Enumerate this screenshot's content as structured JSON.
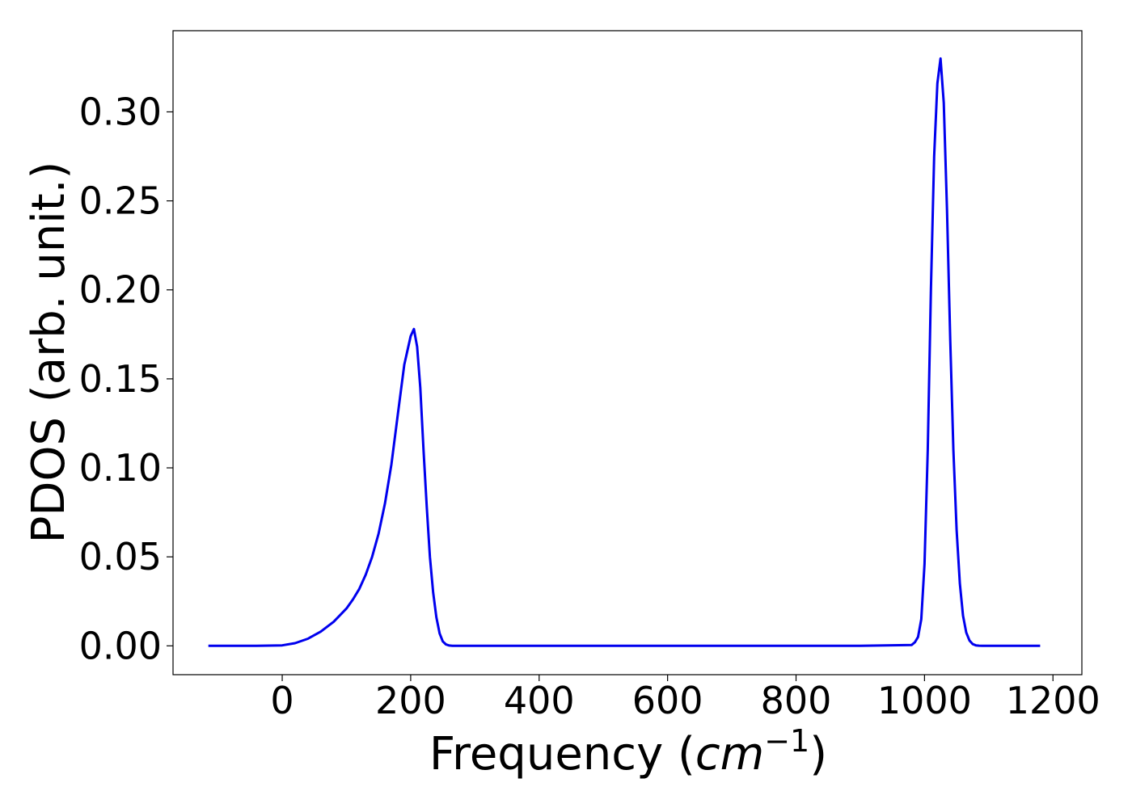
{
  "chart_data": {
    "type": "line",
    "title": "",
    "xlabel_text": "Frequency (",
    "xlabel_math_base": "cm",
    "xlabel_math_exp": "−1",
    "xlabel_close": ")",
    "ylabel": "PDOS (arb. unit.)",
    "xlim": [
      -170,
      1245
    ],
    "ylim": [
      -0.0162,
      0.3456
    ],
    "xticks": [
      0,
      200,
      400,
      600,
      800,
      1000,
      1200
    ],
    "xtick_labels": [
      "0",
      "200",
      "400",
      "600",
      "800",
      "1000",
      "1200"
    ],
    "yticks": [
      0.0,
      0.05,
      0.1,
      0.15,
      0.2,
      0.25,
      0.3
    ],
    "ytick_labels": [
      "0.00",
      "0.05",
      "0.10",
      "0.15",
      "0.20",
      "0.25",
      "0.30"
    ],
    "grid": false,
    "legend": "none",
    "series": [
      {
        "color": "#0000ee",
        "x": [
          -115,
          -80,
          -40,
          0,
          20,
          40,
          60,
          80,
          100,
          110,
          120,
          130,
          140,
          150,
          160,
          170,
          180,
          190,
          200,
          205,
          210,
          215,
          220,
          225,
          230,
          235,
          240,
          245,
          250,
          255,
          260,
          265,
          270,
          280,
          300,
          500,
          700,
          900,
          980,
          985,
          990,
          995,
          1000,
          1005,
          1010,
          1015,
          1020,
          1025,
          1030,
          1035,
          1040,
          1045,
          1050,
          1055,
          1060,
          1065,
          1070,
          1075,
          1080,
          1085,
          1090,
          1095,
          1100,
          1110,
          1150,
          1180
        ],
        "y": [
          0,
          0,
          0,
          0.0003,
          0.0015,
          0.004,
          0.008,
          0.0135,
          0.021,
          0.026,
          0.032,
          0.04,
          0.05,
          0.063,
          0.08,
          0.102,
          0.13,
          0.158,
          0.174,
          0.178,
          0.168,
          0.145,
          0.11,
          0.078,
          0.05,
          0.03,
          0.016,
          0.007,
          0.0025,
          0.0008,
          0.0002,
          5e-05,
          0,
          0,
          0,
          0,
          0,
          0,
          0.0005,
          0.002,
          0.005,
          0.015,
          0.046,
          0.11,
          0.2,
          0.275,
          0.316,
          0.33,
          0.305,
          0.245,
          0.172,
          0.11,
          0.065,
          0.035,
          0.017,
          0.0075,
          0.003,
          0.001,
          0.0003,
          0.0001,
          0,
          0,
          0,
          0,
          0,
          0
        ]
      }
    ]
  }
}
